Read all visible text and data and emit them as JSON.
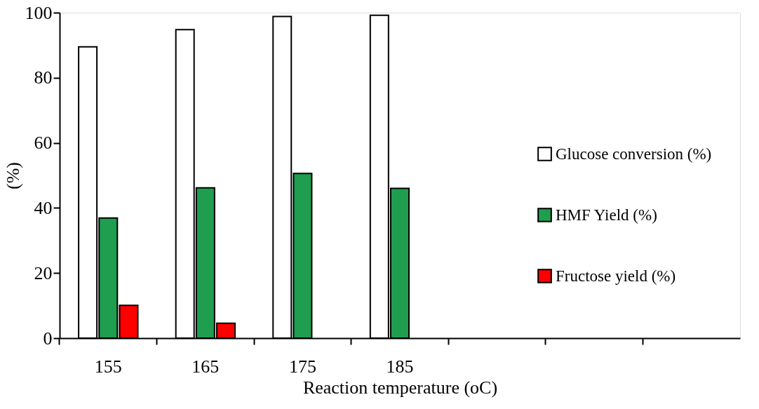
{
  "chart_data": {
    "type": "bar",
    "xlabel": "Reaction temperature (oC)",
    "ylabel": "(%)",
    "categories": [
      "155",
      "165",
      "175",
      "185",
      null,
      null,
      null
    ],
    "series": [
      {
        "name": "Glucose conversion (%)",
        "color": "#ffffff",
        "values": [
          89.5,
          94.8,
          98.8,
          99.2,
          null,
          null,
          null
        ]
      },
      {
        "name": "HMF Yield (%)",
        "color": "#1f9e4f",
        "values": [
          36.9,
          46.2,
          50.6,
          46.0,
          null,
          null,
          null
        ]
      },
      {
        "name": "Fructose yield (%)",
        "color": "#ff0000",
        "values": [
          10.1,
          4.6,
          null,
          null,
          null,
          null,
          null
        ]
      }
    ],
    "ylim": [
      0,
      100
    ],
    "yticks": [
      0,
      20,
      40,
      60,
      80,
      100
    ],
    "grid": false,
    "legend": "right"
  }
}
